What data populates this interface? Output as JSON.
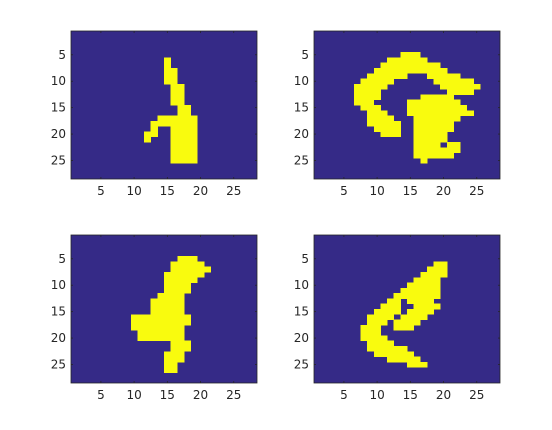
{
  "colors": {
    "background": "#352a87",
    "foreground": "#f9fb0e",
    "axis": "#262626",
    "figure": "#ffffff"
  },
  "chart_data": [
    {
      "type": "heatmap",
      "grid_size": [
        28,
        28
      ],
      "xlim": [
        0.5,
        28.5
      ],
      "ylim": [
        0.5,
        28.5
      ],
      "y_reversed": true,
      "xticks": [
        5,
        10,
        15,
        20,
        25
      ],
      "yticks": [
        5,
        10,
        15,
        20,
        25
      ],
      "xtick_labels": [
        "5",
        "10",
        "15",
        "20",
        "25"
      ],
      "ytick_labels": [
        "5",
        "10",
        "15",
        "20",
        "25"
      ],
      "grid": false,
      "value_map": {
        "0": "background",
        "1": "foreground"
      },
      "rows": [
        "............................",
        "............................",
        "............................",
        "............................",
        "............................",
        "..............#.............",
        "..............#.............",
        "..............##............",
        "..............##............",
        "..............##............",
        "...............##...........",
        "...............##...........",
        "...............##...........",
        "...............##...........",
        "................##..........",
        "................##..........",
        ".............######.........",
        "............#######.........",
        "............#..####.........",
        "...........##..####.........",
        "...........#...####.........",
        "...............####.........",
        "...............####.........",
        "...............####.........",
        "...............####.........",
        "............................",
        "............................",
        "............................"
      ]
    },
    {
      "type": "heatmap",
      "grid_size": [
        28,
        28
      ],
      "xlim": [
        0.5,
        28.5
      ],
      "ylim": [
        0.5,
        28.5
      ],
      "y_reversed": true,
      "xticks": [
        5,
        10,
        15,
        20,
        25
      ],
      "yticks": [
        5,
        10,
        15,
        20,
        25
      ],
      "xtick_labels": [
        "5",
        "10",
        "15",
        "20",
        "25"
      ],
      "ytick_labels": [
        "5",
        "10",
        "15",
        "20",
        "25"
      ],
      "grid": false,
      "value_map": {
        "0": "background",
        "1": "foreground"
      },
      "rows": [
        "............................",
        "............................",
        "............................",
        "............................",
        ".............###............",
        "...........######...........",
        "..........#########.........",
        ".........###########........",
        "........######...#####......",
        ".......#####......######....",
        "......#####........######...",
        "......####..........####....",
        "......####......#####.......",
        "......###.....########......",
        ".......###....#########.....",
        "........###...##########....",
        "........####...#######......",
        "........#####..######.......",
        ".........####..######.......",
        "..........###..#####........",
        "...............#####........",
        "...............####.##......",
        "...............#######......",
        "...............######.......",
        "................#...........",
        "............................",
        "............................",
        "............................"
      ]
    },
    {
      "type": "heatmap",
      "grid_size": [
        28,
        28
      ],
      "xlim": [
        0.5,
        28.5
      ],
      "ylim": [
        0.5,
        28.5
      ],
      "y_reversed": true,
      "xticks": [
        5,
        10,
        15,
        20,
        25
      ],
      "yticks": [
        5,
        10,
        15,
        20,
        25
      ],
      "xtick_labels": [
        "5",
        "10",
        "15",
        "20",
        "25"
      ],
      "ytick_labels": [
        "5",
        "10",
        "15",
        "20",
        "25"
      ],
      "grid": false,
      "value_map": {
        "0": "background",
        "1": "foreground"
      },
      "rows": [
        "............................",
        "............................",
        "............................",
        "............................",
        "................###.........",
        "...............#####........",
        "...............######.......",
        "..............######........",
        "..............#####.........",
        "..............####..........",
        "..............####..........",
        ".............####...........",
        "............#####...........",
        "............#####...........",
        "............#####...........",
        ".........#########..........",
        ".........#########..........",
        ".........########...........",
        "..........#######...........",
        "..........#######...........",
        "...............###..........",
        "...............###..........",
        "..............###...........",
        "..............###...........",
        "..............##............",
        "..............##............",
        "............................",
        "............................"
      ]
    },
    {
      "type": "heatmap",
      "grid_size": [
        28,
        28
      ],
      "xlim": [
        0.5,
        28.5
      ],
      "ylim": [
        0.5,
        28.5
      ],
      "y_reversed": true,
      "xticks": [
        5,
        10,
        15,
        20,
        25
      ],
      "yticks": [
        5,
        10,
        15,
        20,
        25
      ],
      "xtick_labels": [
        "5",
        "10",
        "15",
        "20",
        "25"
      ],
      "ytick_labels": [
        "5",
        "10",
        "15",
        "20",
        "25"
      ],
      "grid": false,
      "value_map": {
        "0": "background",
        "1": "foreground"
      },
      "rows": [
        "............................",
        "............................",
        "............................",
        "............................",
        "............................",
        "..................##........",
        ".................###........",
        "................####........",
        "...............####.........",
        "..............#####.........",
        ".............######.........",
        "............#######.........",
        "...........##.####..........",
        "..........###..####.........",
        ".........####.####..........",
        "........####.####...........",
        "........###.####............",
        ".......###..###.............",
        ".......###..................",
        ".......####.................",
        "........####................",
        "........######..............",
        ".........######.............",
        "...........#####............",
        "..............###...........",
        "............................",
        "............................",
        "............................"
      ]
    }
  ]
}
